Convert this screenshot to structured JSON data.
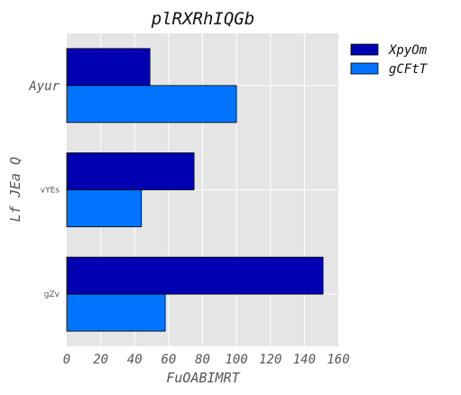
{
  "chart_data": {
    "type": "bar",
    "orientation": "horizontal",
    "title": "plRXRhIQGb",
    "xlabel": "FuOABIMRT",
    "ylabel": "Lf JEa Q",
    "categories": [
      "Ayur",
      "vYEs",
      "gZv"
    ],
    "series": [
      {
        "name": "XpyOm",
        "values": [
          49,
          75,
          151
        ],
        "color": "#0000b3"
      },
      {
        "name": "gCFtT",
        "values": [
          100,
          44,
          58
        ],
        "color": "#0073ff"
      }
    ],
    "xlim": [
      0,
      160
    ],
    "xticks": [
      "0",
      "20",
      "40",
      "60",
      "80",
      "100",
      "120",
      "140",
      "160"
    ],
    "grid": true,
    "legend_position": "outside-top-right",
    "background": "#e5e5e5"
  }
}
